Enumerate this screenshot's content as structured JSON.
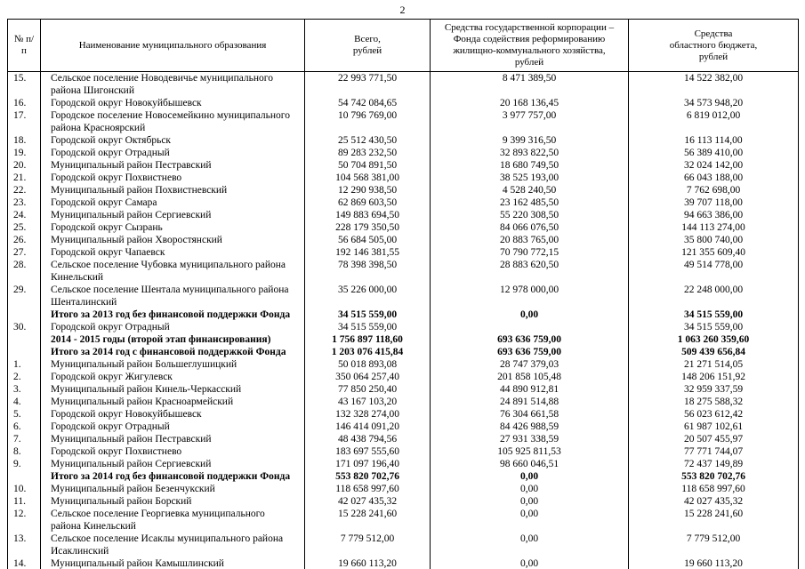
{
  "page": {
    "number": "2"
  },
  "table": {
    "headers": [
      "№ п/п",
      "Наименование муниципального образования",
      "Всего,\nрублей",
      "Средства государственной корпорации –\nФонда содействия реформированию\nжилищно-коммунального хозяйства,\nрублей",
      "Средства\nобластного бюджета,\nрублей"
    ],
    "rows": [
      {
        "num": "15.",
        "name": "Сельское поселение Новодевичье муниципального района Шигонский",
        "total": "22 993 771,50",
        "fund": "8 471 389,50",
        "regional": "14 522 382,00",
        "bold": false
      },
      {
        "num": "16.",
        "name": "Городской округ Новокуйбышевск",
        "total": "54 742 084,65",
        "fund": "20 168 136,45",
        "regional": "34 573 948,20",
        "bold": false
      },
      {
        "num": "17.",
        "name": "Городское поселение Новосемейкино муниципального района Красноярский",
        "total": "10 796 769,00",
        "fund": "3 977 757,00",
        "regional": "6 819 012,00",
        "bold": false
      },
      {
        "num": "18.",
        "name": "Городской округ Октябрьск",
        "total": "25 512 430,50",
        "fund": "9 399 316,50",
        "regional": "16 113 114,00",
        "bold": false
      },
      {
        "num": "19.",
        "name": "Городской округ Отрадный",
        "total": "89 283 232,50",
        "fund": "32 893 822,50",
        "regional": "56 389 410,00",
        "bold": false
      },
      {
        "num": "20.",
        "name": "Муниципальный район Пестравский",
        "total": "50 704 891,50",
        "fund": "18 680 749,50",
        "regional": "32 024 142,00",
        "bold": false
      },
      {
        "num": "21.",
        "name": "Городской округ Похвистнево",
        "total": "104 568 381,00",
        "fund": "38 525 193,00",
        "regional": "66 043 188,00",
        "bold": false
      },
      {
        "num": "22.",
        "name": "Муниципальный район Похвистневский",
        "total": "12 290 938,50",
        "fund": "4 528 240,50",
        "regional": "7 762 698,00",
        "bold": false
      },
      {
        "num": "23.",
        "name": "Городской округ Самара",
        "total": "62 869 603,50",
        "fund": "23 162 485,50",
        "regional": "39 707 118,00",
        "bold": false
      },
      {
        "num": "24.",
        "name": "Муниципальный район Сергиевский",
        "total": "149 883 694,50",
        "fund": "55 220 308,50",
        "regional": "94 663 386,00",
        "bold": false
      },
      {
        "num": "25.",
        "name": "Городской округ Сызрань",
        "total": "228 179 350,50",
        "fund": "84 066 076,50",
        "regional": "144 113 274,00",
        "bold": false
      },
      {
        "num": "26.",
        "name": "Муниципальный район Хворостянский",
        "total": "56 684 505,00",
        "fund": "20 883 765,00",
        "regional": "35 800 740,00",
        "bold": false
      },
      {
        "num": "27.",
        "name": "Городской округ Чапаевск",
        "total": "192 146 381,55",
        "fund": "70 790 772,15",
        "regional": "121 355 609,40",
        "bold": false
      },
      {
        "num": "28.",
        "name": "Сельское поселение Чубовка муниципального района Кинельский",
        "total": "78 398 398,50",
        "fund": "28 883 620,50",
        "regional": "49 514 778,00",
        "bold": false
      },
      {
        "num": "29.",
        "name": "Сельское поселение Шентала муниципального района Шенталинский",
        "total": "35 226 000,00",
        "fund": "12 978 000,00",
        "regional": "22 248 000,00",
        "bold": false
      },
      {
        "num": "",
        "name": "Итого за 2013 год без финансовой поддержки Фонда",
        "total": "34 515 559,00",
        "fund": "0,00",
        "regional": "34 515 559,00",
        "bold": true
      },
      {
        "num": "30.",
        "name": "Городской округ Отрадный",
        "total": "34 515 559,00",
        "fund": "",
        "regional": "34 515 559,00",
        "bold": false
      },
      {
        "num": "",
        "name": "2014 - 2015 годы (второй этап финансирования)",
        "total": "1 756 897 118,60",
        "fund": "693 636 759,00",
        "regional": "1 063 260 359,60",
        "bold": true
      },
      {
        "num": "",
        "name": "Итого за 2014 год с финансовой поддержкой Фонда",
        "total": "1 203 076 415,84",
        "fund": "693 636 759,00",
        "regional": "509 439 656,84",
        "bold": true
      },
      {
        "num": "1.",
        "name": "Муниципальный район Большеглушицкий",
        "total": "50 018 893,08",
        "fund": "28 747 379,03",
        "regional": "21 271 514,05",
        "bold": false
      },
      {
        "num": "2.",
        "name": "Городской округ Жигулевск",
        "total": "350 064 257,40",
        "fund": "201 858 105,48",
        "regional": "148 206 151,92",
        "bold": false
      },
      {
        "num": "3.",
        "name": "Муниципальный район Кинель-Черкасский",
        "total": "77 850 250,40",
        "fund": "44 890 912,81",
        "regional": "32 959 337,59",
        "bold": false
      },
      {
        "num": "4.",
        "name": "Муниципальный район Красноармейский",
        "total": "43 167 103,20",
        "fund": "24 891 514,88",
        "regional": "18 275 588,32",
        "bold": false
      },
      {
        "num": "5.",
        "name": "Городской округ Новокуйбышевск",
        "total": "132 328 274,00",
        "fund": "76 304 661,58",
        "regional": "56 023 612,42",
        "bold": false
      },
      {
        "num": "6.",
        "name": "Городской округ Отрадный",
        "total": "146 414 091,20",
        "fund": "84 426 988,59",
        "regional": "61 987 102,61",
        "bold": false
      },
      {
        "num": "7.",
        "name": "Муниципальный район Пестравский",
        "total": "48 438 794,56",
        "fund": "27 931 338,59",
        "regional": "20 507 455,97",
        "bold": false
      },
      {
        "num": "8.",
        "name": "Городской округ Похвистнево",
        "total": "183 697 555,60",
        "fund": "105 925 811,53",
        "regional": "77 771 744,07",
        "bold": false
      },
      {
        "num": "9.",
        "name": "Муниципальный район Сергиевский",
        "total": "171 097 196,40",
        "fund": "98 660 046,51",
        "regional": "72 437 149,89",
        "bold": false
      },
      {
        "num": "",
        "name": "Итого за 2014 год без финансовой поддержки Фонда",
        "total": "553 820 702,76",
        "fund": "0,00",
        "regional": "553 820 702,76",
        "bold": true
      },
      {
        "num": "10.",
        "name": "Муниципальный район Безенчукский",
        "total": "118 658 997,60",
        "fund": "0,00",
        "regional": "118 658 997,60",
        "bold": false
      },
      {
        "num": "11.",
        "name": "Муниципальный район Борский",
        "total": "42 027 435,32",
        "fund": "0,00",
        "regional": "42 027 435,32",
        "bold": false
      },
      {
        "num": "12.",
        "name": "Сельское поселение Георгиевка муниципального района Кинельский",
        "total": "15 228 241,60",
        "fund": "0,00",
        "regional": "15 228 241,60",
        "bold": false
      },
      {
        "num": "13.",
        "name": "Сельское поселение Исаклы муниципального района Исаклинский",
        "total": "7 779 512,00",
        "fund": "0,00",
        "regional": "7 779 512,00",
        "bold": false
      },
      {
        "num": "14.",
        "name": "Муниципальный район Камышлинский",
        "total": "19 660 113,20",
        "fund": "0,00",
        "regional": "19 660 113,20",
        "bold": false
      }
    ]
  }
}
